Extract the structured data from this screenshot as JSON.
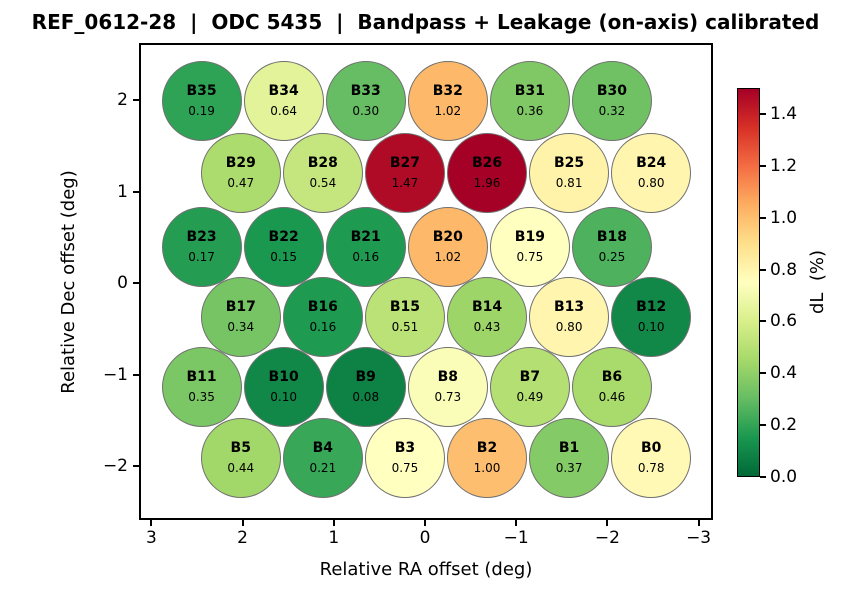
{
  "title": "REF_0612-28  |  ODC 5435  |  Bandpass + Leakage (on-axis) calibrated",
  "chart_data": {
    "type": "scatter",
    "title": "REF_0612-28  |  ODC 5435  |  Bandpass + Leakage (on-axis) calibrated",
    "xlabel": "Relative RA offset (deg)",
    "ylabel": "Relative Dec offset (deg)",
    "x_axis_inverted": true,
    "xlim": [
      3.15,
      -3.15
    ],
    "ylim": [
      -2.6,
      2.62
    ],
    "grid": false,
    "marker_radius_deg": 0.44,
    "x_ticks": [
      {
        "label": "3",
        "value": 3
      },
      {
        "label": "2",
        "value": 2
      },
      {
        "label": "1",
        "value": 1
      },
      {
        "label": "0",
        "value": 0
      },
      {
        "label": "−1",
        "value": -1
      },
      {
        "label": "−2",
        "value": -2
      },
      {
        "label": "−3",
        "value": -3
      }
    ],
    "y_ticks": [
      {
        "label": "2",
        "value": 2
      },
      {
        "label": "1",
        "value": 1
      },
      {
        "label": "0",
        "value": 0
      },
      {
        "label": "−1",
        "value": -1
      },
      {
        "label": "−2",
        "value": -2
      }
    ],
    "colorbar": {
      "label": "dL  (%)",
      "vmin": 0.0,
      "vmax": 1.5,
      "colormap": "RdYlGn_r",
      "ticks": [
        {
          "label": "0.0",
          "value": 0.0
        },
        {
          "label": "0.2",
          "value": 0.2
        },
        {
          "label": "0.4",
          "value": 0.4
        },
        {
          "label": "0.6",
          "value": 0.6
        },
        {
          "label": "0.8",
          "value": 0.8
        },
        {
          "label": "1.0",
          "value": 1.0
        },
        {
          "label": "1.2",
          "value": 1.2
        },
        {
          "label": "1.4",
          "value": 1.4
        }
      ]
    },
    "points": [
      {
        "id": "B35",
        "x": 2.45,
        "y": 1.99,
        "value": 0.19
      },
      {
        "id": "B34",
        "x": 1.55,
        "y": 1.99,
        "value": 0.64
      },
      {
        "id": "B33",
        "x": 0.65,
        "y": 1.99,
        "value": 0.3
      },
      {
        "id": "B32",
        "x": -0.25,
        "y": 1.99,
        "value": 1.02
      },
      {
        "id": "B31",
        "x": -1.15,
        "y": 1.99,
        "value": 0.36
      },
      {
        "id": "B30",
        "x": -2.05,
        "y": 1.99,
        "value": 0.32
      },
      {
        "id": "B29",
        "x": 2.02,
        "y": 1.2,
        "value": 0.47
      },
      {
        "id": "B28",
        "x": 1.12,
        "y": 1.2,
        "value": 0.54
      },
      {
        "id": "B27",
        "x": 0.22,
        "y": 1.2,
        "value": 1.47
      },
      {
        "id": "B26",
        "x": -0.68,
        "y": 1.2,
        "value": 1.96
      },
      {
        "id": "B25",
        "x": -1.58,
        "y": 1.2,
        "value": 0.81
      },
      {
        "id": "B24",
        "x": -2.48,
        "y": 1.2,
        "value": 0.8
      },
      {
        "id": "B23",
        "x": 2.45,
        "y": 0.39,
        "value": 0.17
      },
      {
        "id": "B22",
        "x": 1.55,
        "y": 0.39,
        "value": 0.15
      },
      {
        "id": "B21",
        "x": 0.65,
        "y": 0.39,
        "value": 0.16
      },
      {
        "id": "B20",
        "x": -0.25,
        "y": 0.39,
        "value": 1.02
      },
      {
        "id": "B19",
        "x": -1.15,
        "y": 0.39,
        "value": 0.75
      },
      {
        "id": "B18",
        "x": -2.05,
        "y": 0.39,
        "value": 0.25
      },
      {
        "id": "B17",
        "x": 2.02,
        "y": -0.37,
        "value": 0.34
      },
      {
        "id": "B16",
        "x": 1.12,
        "y": -0.37,
        "value": 0.16
      },
      {
        "id": "B15",
        "x": 0.22,
        "y": -0.37,
        "value": 0.51
      },
      {
        "id": "B14",
        "x": -0.68,
        "y": -0.37,
        "value": 0.43
      },
      {
        "id": "B13",
        "x": -1.58,
        "y": -0.37,
        "value": 0.8
      },
      {
        "id": "B12",
        "x": -2.48,
        "y": -0.37,
        "value": 0.1
      },
      {
        "id": "B11",
        "x": 2.45,
        "y": -1.14,
        "value": 0.35
      },
      {
        "id": "B10",
        "x": 1.55,
        "y": -1.14,
        "value": 0.1
      },
      {
        "id": "B9",
        "x": 0.65,
        "y": -1.14,
        "value": 0.08
      },
      {
        "id": "B8",
        "x": -0.25,
        "y": -1.14,
        "value": 0.73
      },
      {
        "id": "B7",
        "x": -1.15,
        "y": -1.14,
        "value": 0.49
      },
      {
        "id": "B6",
        "x": -2.05,
        "y": -1.14,
        "value": 0.46
      },
      {
        "id": "B5",
        "x": 2.02,
        "y": -1.91,
        "value": 0.44
      },
      {
        "id": "B4",
        "x": 1.12,
        "y": -1.91,
        "value": 0.21
      },
      {
        "id": "B3",
        "x": 0.22,
        "y": -1.91,
        "value": 0.75
      },
      {
        "id": "B2",
        "x": -0.68,
        "y": -1.91,
        "value": 1.0
      },
      {
        "id": "B1",
        "x": -1.58,
        "y": -1.91,
        "value": 0.37
      },
      {
        "id": "B0",
        "x": -2.48,
        "y": -1.91,
        "value": 0.78
      }
    ]
  },
  "style": {
    "background": "#ffffff",
    "marker_edge_color": "#707070",
    "text_color": "#000000",
    "colormap_stops": [
      "#006837",
      "#1a9850",
      "#66bd63",
      "#a6d96a",
      "#d9ef8b",
      "#ffffbf",
      "#fee08b",
      "#fdae61",
      "#f46d43",
      "#d73027",
      "#a50026"
    ]
  }
}
